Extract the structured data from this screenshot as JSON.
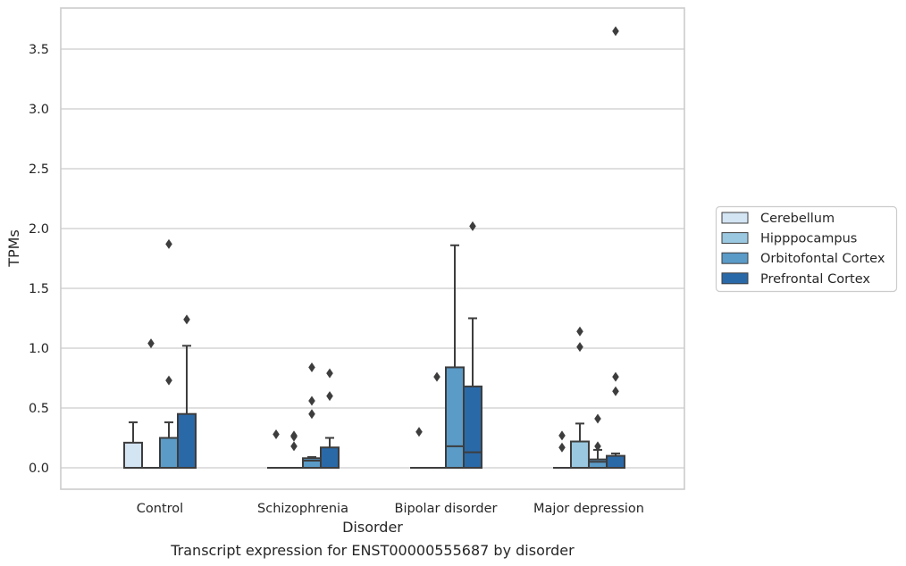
{
  "chart_data": {
    "type": "box",
    "title": "",
    "caption": "Transcript expression for ENST00000555687 by disorder",
    "xlabel": "Disorder",
    "ylabel": "TPMs",
    "ylim": [
      -0.18,
      3.85
    ],
    "yticks": [
      "0.0",
      "0.5",
      "1.0",
      "1.5",
      "2.0",
      "2.5",
      "3.0",
      "3.5"
    ],
    "ytick_values": [
      0,
      0.5,
      1.0,
      1.5,
      2.0,
      2.5,
      3.0,
      3.5
    ],
    "grid": "horizontal",
    "legend_position": "center-right",
    "categories": [
      "Control",
      "Schizophrenia",
      "Bipolar disorder",
      "Major depression"
    ],
    "series": [
      {
        "name": "Cerebellum",
        "color": "#d3e4f3",
        "boxes": [
          {
            "q1": 0,
            "median": 0,
            "q3": 0.21,
            "whisker_low": 0,
            "whisker_high": 0.38,
            "outliers": []
          },
          {
            "q1": 0,
            "median": 0,
            "q3": 0,
            "whisker_low": 0,
            "whisker_high": 0,
            "outliers": [
              0.28
            ]
          },
          {
            "q1": 0,
            "median": 0,
            "q3": 0,
            "whisker_low": 0,
            "whisker_high": 0,
            "outliers": [
              0.3
            ]
          },
          {
            "q1": 0,
            "median": 0,
            "q3": 0,
            "whisker_low": 0,
            "whisker_high": 0,
            "outliers": [
              0.27,
              0.17
            ]
          }
        ]
      },
      {
        "name": "Hipppocampus",
        "color": "#9ac8e0",
        "boxes": [
          {
            "q1": 0,
            "median": 0,
            "q3": 0,
            "whisker_low": 0,
            "whisker_high": 0,
            "outliers": [
              1.04
            ]
          },
          {
            "q1": 0,
            "median": 0,
            "q3": 0,
            "whisker_low": 0,
            "whisker_high": 0,
            "outliers": [
              0.27,
              0.26,
              0.18
            ]
          },
          {
            "q1": 0,
            "median": 0,
            "q3": 0,
            "whisker_low": 0,
            "whisker_high": 0,
            "outliers": [
              0.76
            ]
          },
          {
            "q1": 0,
            "median": 0,
            "q3": 0.22,
            "whisker_low": 0,
            "whisker_high": 0.37,
            "outliers": [
              1.14,
              1.01
            ]
          }
        ]
      },
      {
        "name": "Orbitofontal Cortex",
        "color": "#5a9bc8",
        "boxes": [
          {
            "q1": 0,
            "median": 0,
            "q3": 0.25,
            "whisker_low": 0,
            "whisker_high": 0.38,
            "outliers": [
              1.87,
              0.73
            ]
          },
          {
            "q1": 0,
            "median": 0.06,
            "q3": 0.08,
            "whisker_low": 0,
            "whisker_high": 0.09,
            "outliers": [
              0.84,
              0.56,
              0.45
            ]
          },
          {
            "q1": 0,
            "median": 0.18,
            "q3": 0.84,
            "whisker_low": 0,
            "whisker_high": 1.86,
            "outliers": []
          },
          {
            "q1": 0,
            "median": 0.05,
            "q3": 0.07,
            "whisker_low": 0,
            "whisker_high": 0.15,
            "outliers": [
              0.41,
              0.18
            ]
          }
        ]
      },
      {
        "name": "Prefrontal Cortex",
        "color": "#2a69a8",
        "boxes": [
          {
            "q1": 0,
            "median": 0,
            "q3": 0.45,
            "whisker_low": 0,
            "whisker_high": 1.02,
            "outliers": [
              1.24
            ]
          },
          {
            "q1": 0,
            "median": 0,
            "q3": 0.17,
            "whisker_low": 0,
            "whisker_high": 0.25,
            "outliers": [
              0.79,
              0.6
            ]
          },
          {
            "q1": 0,
            "median": 0.13,
            "q3": 0.68,
            "whisker_low": 0,
            "whisker_high": 1.25,
            "outliers": [
              2.02
            ]
          },
          {
            "q1": 0,
            "median": 0,
            "q3": 0.1,
            "whisker_low": 0,
            "whisker_high": 0.12,
            "outliers": [
              3.65,
              0.76,
              0.64
            ]
          }
        ]
      }
    ]
  }
}
